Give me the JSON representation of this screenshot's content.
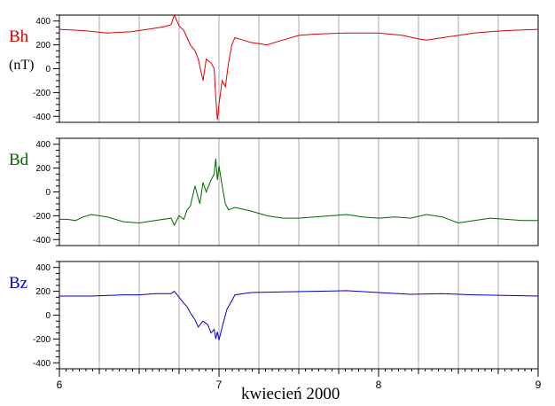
{
  "chart_data": {
    "type": "line",
    "xlabel": "kwiecień 2000",
    "x_ticks": [
      "6",
      "7",
      "8",
      "9"
    ],
    "xlim": [
      6,
      9
    ],
    "unit": "(nT)",
    "panels": [
      {
        "name": "Bh",
        "color": "#dd0000",
        "ylim": [
          -450,
          450
        ],
        "y_ticks": [
          -400,
          -200,
          0,
          200,
          400
        ],
        "x": [
          6.0,
          6.15,
          6.3,
          6.45,
          6.55,
          6.65,
          6.7,
          6.72,
          6.75,
          6.78,
          6.8,
          6.82,
          6.85,
          6.87,
          6.9,
          6.92,
          6.95,
          6.97,
          6.98,
          6.99,
          7.0,
          7.02,
          7.04,
          7.06,
          7.08,
          7.1,
          7.15,
          7.2,
          7.3,
          7.4,
          7.5,
          7.6,
          7.8,
          8.0,
          8.15,
          8.25,
          8.3,
          8.4,
          8.5,
          8.6,
          8.7,
          8.8,
          9.0
        ],
        "y": [
          330,
          320,
          300,
          310,
          330,
          350,
          370,
          450,
          360,
          320,
          260,
          200,
          150,
          80,
          -100,
          80,
          50,
          0,
          -250,
          -430,
          -300,
          -100,
          -150,
          50,
          200,
          260,
          240,
          220,
          200,
          240,
          280,
          290,
          300,
          300,
          280,
          250,
          240,
          260,
          280,
          300,
          310,
          320,
          330
        ]
      },
      {
        "name": "Bd",
        "color": "#006600",
        "ylim": [
          -450,
          450
        ],
        "y_ticks": [
          -400,
          -200,
          0,
          200,
          400
        ],
        "x": [
          6.0,
          6.05,
          6.1,
          6.15,
          6.2,
          6.3,
          6.4,
          6.5,
          6.6,
          6.7,
          6.72,
          6.75,
          6.78,
          6.8,
          6.82,
          6.85,
          6.88,
          6.9,
          6.92,
          6.95,
          6.97,
          6.98,
          6.99,
          7.0,
          7.02,
          7.04,
          7.06,
          7.08,
          7.1,
          7.2,
          7.3,
          7.4,
          7.5,
          7.6,
          7.7,
          7.8,
          7.9,
          8.0,
          8.1,
          8.2,
          8.3,
          8.4,
          8.5,
          8.6,
          8.7,
          8.8,
          8.9,
          9.0
        ],
        "y": [
          -230,
          -230,
          -240,
          -210,
          -190,
          -210,
          -250,
          -260,
          -240,
          -220,
          -280,
          -200,
          -230,
          -150,
          -120,
          50,
          -100,
          80,
          0,
          100,
          150,
          280,
          100,
          220,
          50,
          -100,
          -150,
          -140,
          -130,
          -160,
          -200,
          -220,
          -220,
          -210,
          -200,
          -190,
          -210,
          -220,
          -210,
          -220,
          -190,
          -210,
          -260,
          -240,
          -220,
          -230,
          -240,
          -240
        ]
      },
      {
        "name": "Bz",
        "color": "#0000cc",
        "ylim": [
          -450,
          450
        ],
        "y_ticks": [
          -400,
          -200,
          0,
          200,
          400
        ],
        "x": [
          6.0,
          6.2,
          6.4,
          6.5,
          6.6,
          6.7,
          6.72,
          6.75,
          6.78,
          6.8,
          6.82,
          6.85,
          6.87,
          6.9,
          6.93,
          6.95,
          6.97,
          6.98,
          6.99,
          7.0,
          7.02,
          7.05,
          7.08,
          7.1,
          7.2,
          7.4,
          7.6,
          7.8,
          8.0,
          8.2,
          8.4,
          8.6,
          8.8,
          9.0
        ],
        "y": [
          160,
          160,
          170,
          170,
          180,
          180,
          200,
          150,
          100,
          70,
          20,
          -40,
          -100,
          -50,
          -80,
          -150,
          -120,
          -200,
          -140,
          -210,
          -100,
          50,
          120,
          170,
          190,
          195,
          200,
          205,
          190,
          175,
          180,
          170,
          165,
          160
        ]
      }
    ]
  }
}
